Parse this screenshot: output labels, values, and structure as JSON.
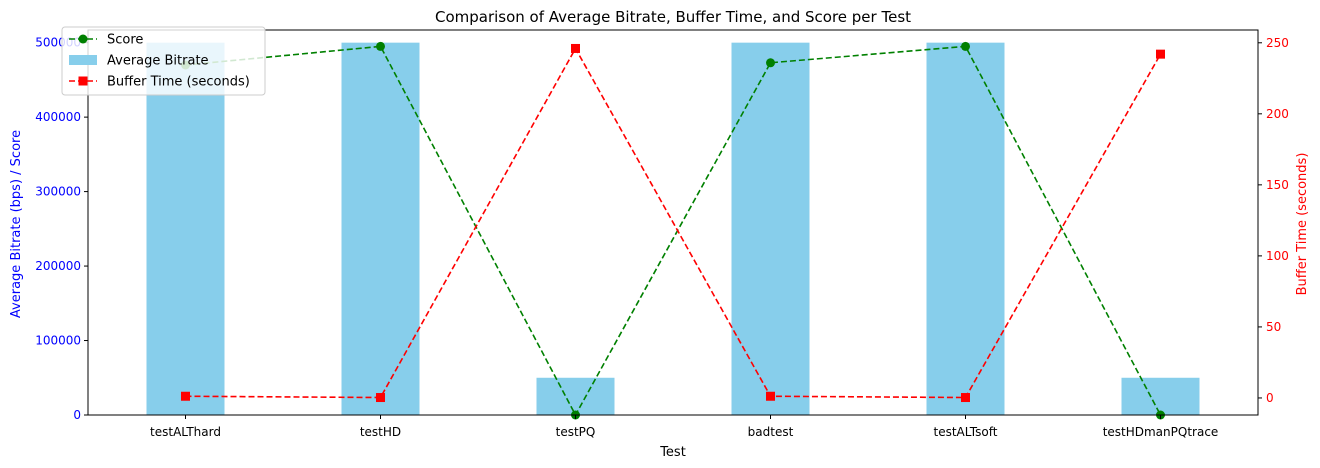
{
  "chart_data": {
    "type": "bar+line",
    "title": "Comparison of Average Bitrate, Buffer Time, and Score per Test",
    "xlabel": "Test",
    "ylabel_left": "Average Bitrate (bps) / Score",
    "ylabel_right": "Buffer Time (seconds)",
    "categories": [
      "testALThard",
      "testHD",
      "testPQ",
      "badtest",
      "testALTsoft",
      "testHDmanPQtrace"
    ],
    "ylim_left": [
      0,
      517000
    ],
    "ylim_right": [
      -12,
      259
    ],
    "yticks_left": [
      0,
      100000,
      200000,
      300000,
      400000,
      500000
    ],
    "yticks_right": [
      0,
      50,
      100,
      150,
      200,
      250
    ],
    "legend_placement": "upper-left",
    "grid": false,
    "series": [
      {
        "name": "Average Bitrate",
        "kind": "bar",
        "axis": "left",
        "color": "#87ceeb",
        "values": [
          500000,
          500000,
          50000,
          500000,
          500000,
          50000
        ]
      },
      {
        "name": "Score",
        "kind": "line",
        "axis": "left",
        "color": "#008000",
        "marker": "circle",
        "values": [
          470000,
          495000,
          0,
          473000,
          495000,
          0
        ]
      },
      {
        "name": "Buffer Time (seconds)",
        "kind": "line",
        "axis": "right",
        "color": "#ff0000",
        "marker": "square",
        "values": [
          1.2,
          0.3,
          246,
          1.2,
          0.3,
          242
        ]
      }
    ],
    "colors": {
      "left_axis": "#0000ff",
      "right_axis": "#ff0000",
      "axis_frame": "#000000"
    }
  }
}
